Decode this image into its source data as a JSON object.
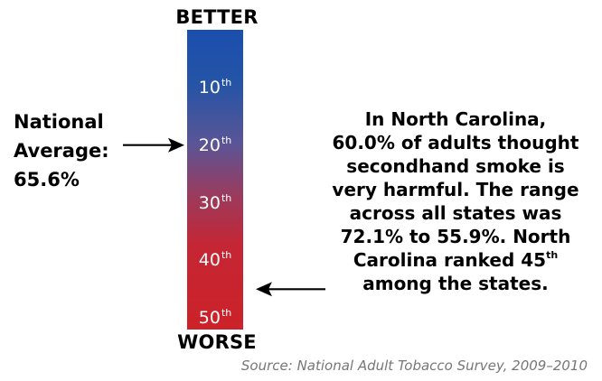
{
  "chart_data": {
    "type": "rank-scale",
    "top_label": "BETTER",
    "bottom_label": "WORSE",
    "ticks": [
      {
        "value": 10,
        "label": "10",
        "suffix": "th"
      },
      {
        "value": 20,
        "label": "20",
        "suffix": "th"
      },
      {
        "value": 30,
        "label": "30",
        "suffix": "th"
      },
      {
        "value": 40,
        "label": "40",
        "suffix": "th"
      },
      {
        "value": 50,
        "label": "50",
        "suffix": "th"
      }
    ],
    "rank_range": [
      0,
      52
    ],
    "gradient_colors": {
      "better": "#1a4fae",
      "middle": "#5a5596",
      "worse": "#cc2229"
    },
    "national_average": {
      "label_line1": "National",
      "label_line2": "Average:",
      "value_text": "65.6%",
      "rank_position": 20
    },
    "state": {
      "name": "North Carolina",
      "rank": 45,
      "lines": [
        "In North Carolina,",
        "60.0% of adults thought",
        "secondhand smoke is",
        "very harmful. The range",
        "across all states was",
        "72.1% to 55.9%. North",
        "Carolina ranked 45"
      ],
      "rank_suffix": "th",
      "last_line": "among the states."
    },
    "source": "Source: National Adult Tobacco Survey, 2009–2010"
  }
}
